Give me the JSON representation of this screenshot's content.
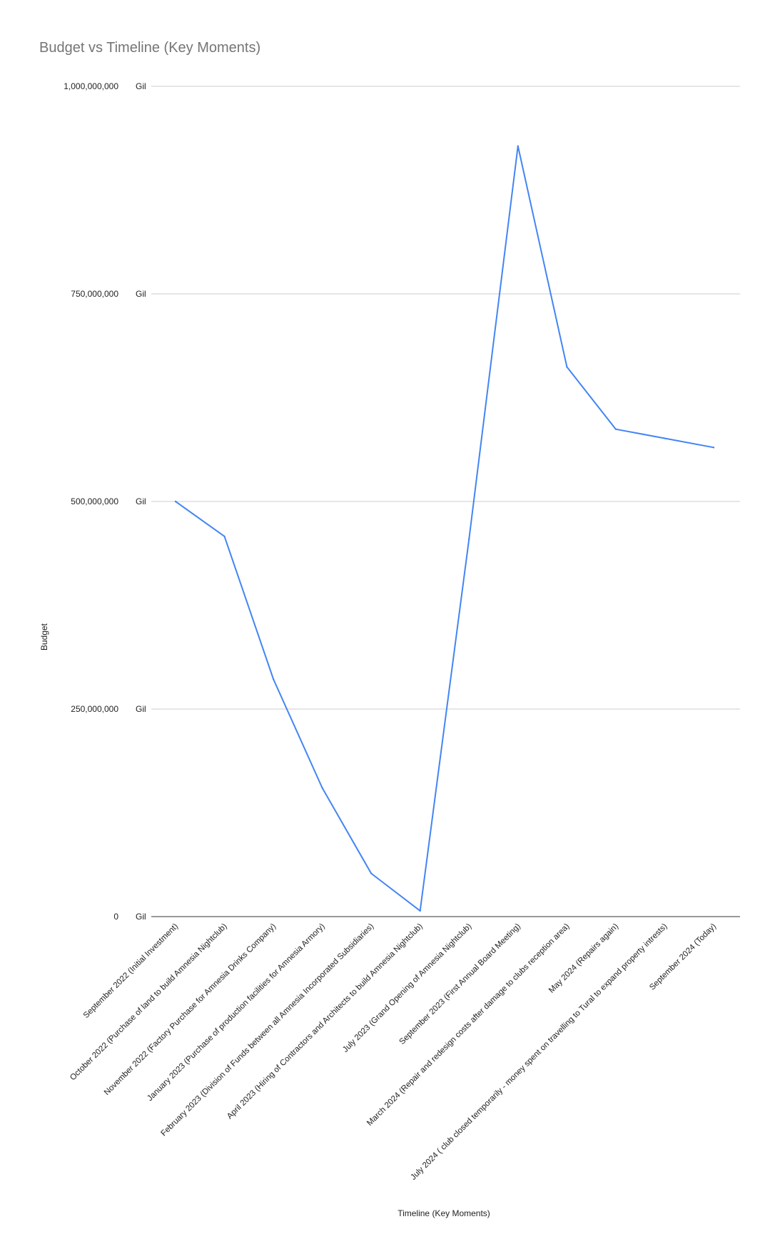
{
  "chart_data": {
    "type": "line",
    "title": "Budget vs Timeline (Key Moments)",
    "xlabel": "Timeline (Key Moments)",
    "ylabel": "Budget",
    "ylim": [
      0,
      1000000000
    ],
    "y_ticks": [
      {
        "value": 0,
        "label": "0",
        "unit": "Gil"
      },
      {
        "value": 250000000,
        "label": "250,000,000",
        "unit": "Gil"
      },
      {
        "value": 500000000,
        "label": "500,000,000",
        "unit": "Gil"
      },
      {
        "value": 750000000,
        "label": "750,000,000",
        "unit": "Gil"
      },
      {
        "value": 1000000000,
        "label": "1,000,000,000",
        "unit": "Gil"
      }
    ],
    "grid": true,
    "legend": "none",
    "categories": [
      "September 2022 (Initial Investment)",
      "October 2022 (Purchase of land to build Amnesia Nightclub)",
      "November 2022 (Factory Purchase for Amnesia Drinks Company)",
      "January 2023 (Purchase of production facilities for Amnesia Armory)",
      "February 2023 (Division of Funds between all Amnesia Incorporated Subsidiaries)",
      "April 2023 (Hiring of Contractors and Architects to build Amnesia Nightclub)",
      "July 2023 (Grand Opening of Amnesia Nightclub)",
      "September 2023 (First Annual Board Meeting)",
      "March 2024 (Repair and redesign costs after damage to clubs reception area)",
      "May 2024 (Repairs again)",
      "July 2024 ( club closed temporarily - money spent on travelling to Tural to expand property intrests)",
      "September 2024 (Today)"
    ],
    "series": [
      {
        "color": "#4285f4",
        "values": [
          500000000,
          458000000,
          286000000,
          155000000,
          52000000,
          7000000,
          455000000,
          928000000,
          662000000,
          587000000,
          576000000,
          565000000
        ]
      }
    ]
  }
}
